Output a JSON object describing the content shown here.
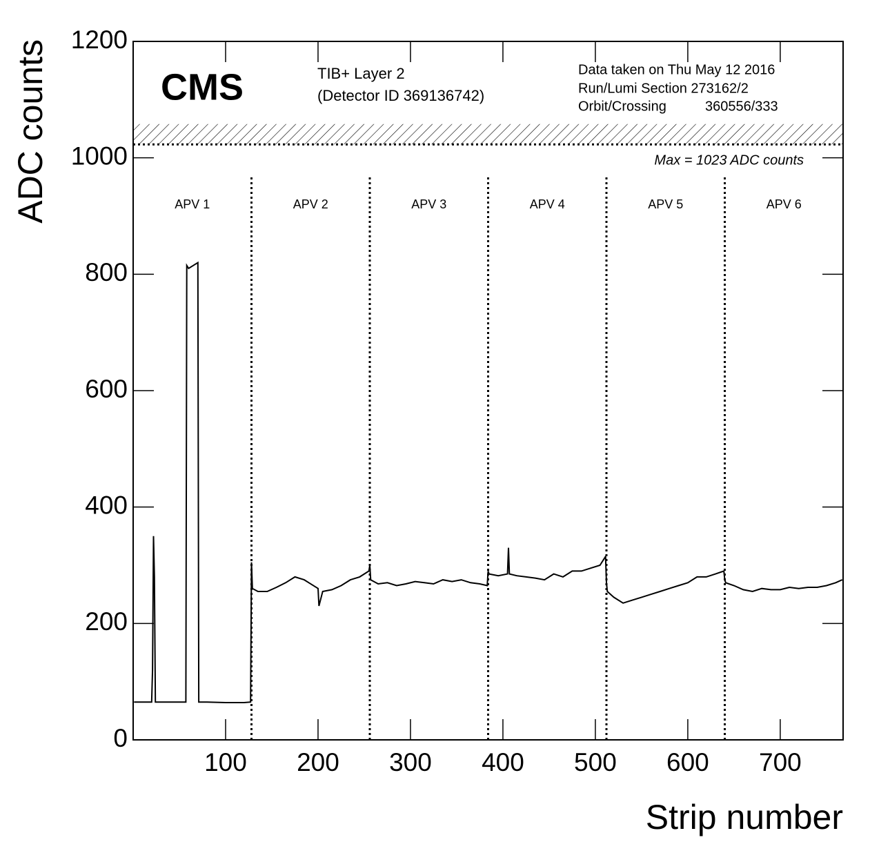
{
  "chart_data": {
    "type": "line",
    "xlabel": "Strip number",
    "ylabel": "ADC counts",
    "xlim": [
      0,
      768
    ],
    "ylim": [
      0,
      1200
    ],
    "xticks": [
      100,
      200,
      300,
      400,
      500,
      600,
      700
    ],
    "yticks": [
      0,
      200,
      400,
      600,
      800,
      1000,
      1200
    ],
    "color": "#000000",
    "x": [
      1,
      10,
      20,
      21,
      22,
      23,
      24,
      25,
      40,
      57,
      58,
      60,
      65,
      70,
      71,
      72,
      80,
      100,
      120,
      127,
      128,
      129,
      135,
      145,
      155,
      165,
      175,
      185,
      190,
      200,
      201,
      205,
      215,
      225,
      235,
      245,
      255,
      256,
      257,
      265,
      275,
      285,
      295,
      305,
      315,
      325,
      335,
      345,
      355,
      365,
      375,
      383,
      384,
      385,
      395,
      405,
      406,
      407,
      415,
      425,
      435,
      445,
      455,
      465,
      475,
      485,
      495,
      505,
      511,
      512,
      513,
      520,
      530,
      540,
      550,
      560,
      570,
      580,
      590,
      600,
      610,
      620,
      630,
      639,
      640,
      641,
      650,
      660,
      670,
      680,
      690,
      700,
      710,
      720,
      730,
      740,
      750,
      760,
      767
    ],
    "values": [
      65,
      65,
      65,
      120,
      350,
      280,
      65,
      65,
      65,
      65,
      815,
      810,
      815,
      820,
      65,
      65,
      65,
      64,
      64,
      65,
      305,
      260,
      255,
      255,
      262,
      270,
      280,
      275,
      270,
      260,
      230,
      255,
      258,
      265,
      275,
      280,
      290,
      300,
      275,
      268,
      270,
      265,
      268,
      272,
      270,
      268,
      275,
      272,
      275,
      270,
      268,
      265,
      290,
      285,
      282,
      285,
      330,
      285,
      282,
      280,
      278,
      275,
      285,
      280,
      290,
      290,
      295,
      300,
      315,
      270,
      255,
      245,
      235,
      240,
      245,
      250,
      255,
      260,
      265,
      270,
      280,
      280,
      285,
      290,
      275,
      270,
      265,
      258,
      255,
      260,
      258,
      258,
      262,
      260,
      262,
      262,
      265,
      270,
      275
    ],
    "apv_boundaries": [
      128,
      256,
      384,
      512,
      640
    ],
    "apv_labels": [
      "APV 1",
      "APV 2",
      "APV 3",
      "APV 4",
      "APV 5",
      "APV 6"
    ],
    "max_adc": 1023,
    "saturation_top": 1058,
    "max_label": "Max = 1023 ADC counts",
    "cms_label": "CMS",
    "detector_lines": [
      "TIB+ Layer 2",
      "(Detector ID 369136742)"
    ],
    "run_info": [
      "Data taken on Thu May 12 2016",
      "Run/Lumi Section 273162/2"
    ],
    "orbit_label": "Orbit/Crossing",
    "orbit_value": "360556/333"
  }
}
